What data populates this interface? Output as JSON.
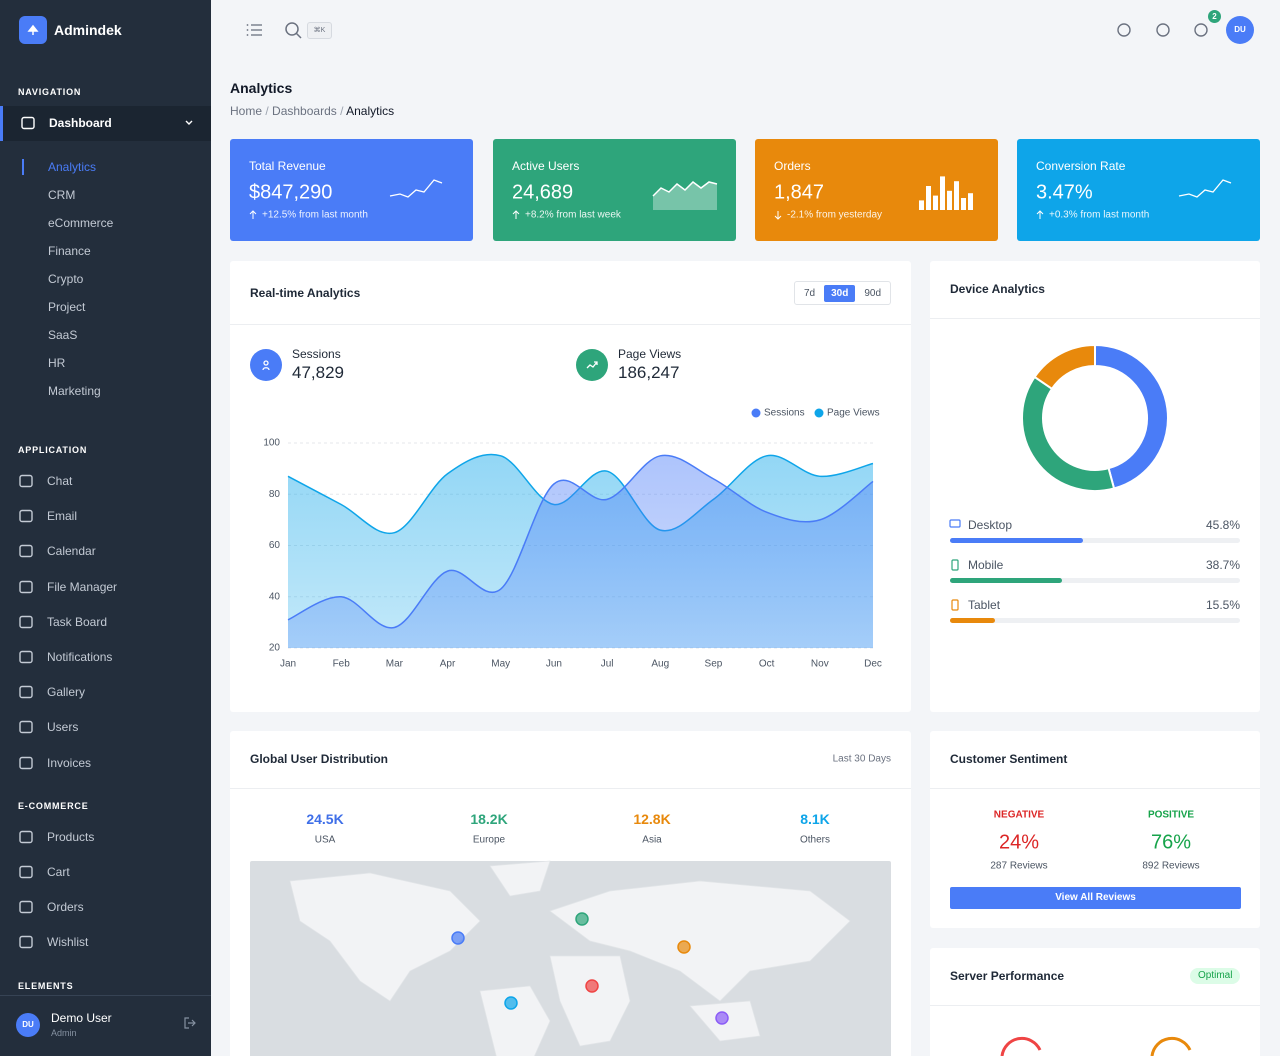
{
  "brand": "Admindek",
  "topbar": {
    "shortcut": "⌘K",
    "notification_count": 2,
    "avatar": "DU"
  },
  "sidebar": {
    "sections": [
      {
        "title": "NAVIGATION",
        "items": [
          {
            "label": "Dashboard",
            "children": [
              "Analytics",
              "CRM",
              "eCommerce",
              "Finance",
              "Crypto",
              "Project",
              "SaaS",
              "HR",
              "Marketing"
            ]
          }
        ]
      },
      {
        "title": "APPLICATION",
        "items": [
          {
            "label": "Chat"
          },
          {
            "label": "Email"
          },
          {
            "label": "Calendar"
          },
          {
            "label": "File Manager"
          },
          {
            "label": "Task Board"
          },
          {
            "label": "Notifications"
          },
          {
            "label": "Gallery"
          },
          {
            "label": "Users"
          },
          {
            "label": "Invoices"
          }
        ]
      },
      {
        "title": "E-COMMERCE",
        "items": [
          {
            "label": "Products"
          },
          {
            "label": "Cart"
          },
          {
            "label": "Orders"
          },
          {
            "label": "Wishlist"
          }
        ]
      },
      {
        "title": "ELEMENTS",
        "items": []
      }
    ]
  },
  "user": {
    "initials": "DU",
    "name": "Demo User",
    "role": "Admin"
  },
  "page": {
    "title": "Analytics",
    "breadcrumb": [
      "Home",
      "Dashboards",
      "Analytics"
    ]
  },
  "stats": [
    {
      "label": "Total Revenue",
      "value": "$847,290",
      "change": "+12.5% from last month",
      "color": "#4a7cf7"
    },
    {
      "label": "Active Users",
      "value": "24,689",
      "change": "+8.2% from last week",
      "color": "#2ea57b"
    },
    {
      "label": "Orders",
      "value": "1,847",
      "change": "-2.1% from yesterday",
      "color": "#e8890c"
    },
    {
      "label": "Conversion Rate",
      "value": "3.47%",
      "change": "+0.3% from last month",
      "color": "#0ea5e9"
    }
  ],
  "realtime": {
    "title": "Real-time Analytics",
    "ranges": [
      "7d",
      "30d",
      "90d"
    ],
    "metrics": [
      {
        "label": "Sessions",
        "value": "47,829",
        "color": "#4a7cf7"
      },
      {
        "label": "Page Views",
        "value": "186,247",
        "color": "#2ea57b"
      }
    ]
  },
  "device": {
    "title": "Device Analytics"
  },
  "distribution": {
    "title": "Global User Distribution",
    "period": "Last 30 Days",
    "regions": [
      {
        "value": "24.5K",
        "label": "USA",
        "color": "#3f6fe8"
      },
      {
        "value": "18.2K",
        "label": "Europe",
        "color": "#2ea57b"
      },
      {
        "value": "12.8K",
        "label": "Asia",
        "color": "#e8890c"
      },
      {
        "value": "8.1K",
        "label": "Others",
        "color": "#0ea5e9"
      }
    ]
  },
  "sentiment": {
    "title": "Customer Sentiment",
    "groups": [
      {
        "label": "NEGATIVE",
        "value": "24%",
        "reviews": "287 Reviews",
        "color": "#dc2626"
      },
      {
        "label": "POSITIVE",
        "value": "76%",
        "reviews": "892 Reviews",
        "color": "#16a34a"
      }
    ],
    "button": "View All Reviews"
  },
  "server": {
    "title": "Server Performance",
    "status": "Optimal"
  },
  "chart_data": [
    {
      "type": "area",
      "categories": [
        "Jan",
        "Feb",
        "Mar",
        "Apr",
        "May",
        "Jun",
        "Jul",
        "Aug",
        "Sep",
        "Oct",
        "Nov",
        "Dec"
      ],
      "series": [
        {
          "name": "Sessions",
          "color": "#4a7cf7",
          "values": [
            31,
            40,
            28,
            50,
            43,
            84,
            78,
            95,
            86,
            73,
            70,
            85
          ]
        },
        {
          "name": "Page Views",
          "color": "#0ea5e9",
          "values": [
            87,
            76,
            65,
            88,
            95,
            76,
            89,
            66,
            78,
            95,
            87,
            92
          ]
        }
      ],
      "ylim": [
        20,
        100
      ],
      "yticks": [
        20,
        40,
        60,
        80,
        100
      ],
      "grid": true
    },
    {
      "type": "donut",
      "categories": [
        "Desktop",
        "Mobile",
        "Tablet"
      ],
      "values": [
        45.8,
        38.7,
        15.5
      ],
      "value_labels": [
        "45.8%",
        "38.7%",
        "15.5%"
      ],
      "colors": [
        "#4a7cf7",
        "#2ea57b",
        "#e8890c"
      ]
    }
  ]
}
